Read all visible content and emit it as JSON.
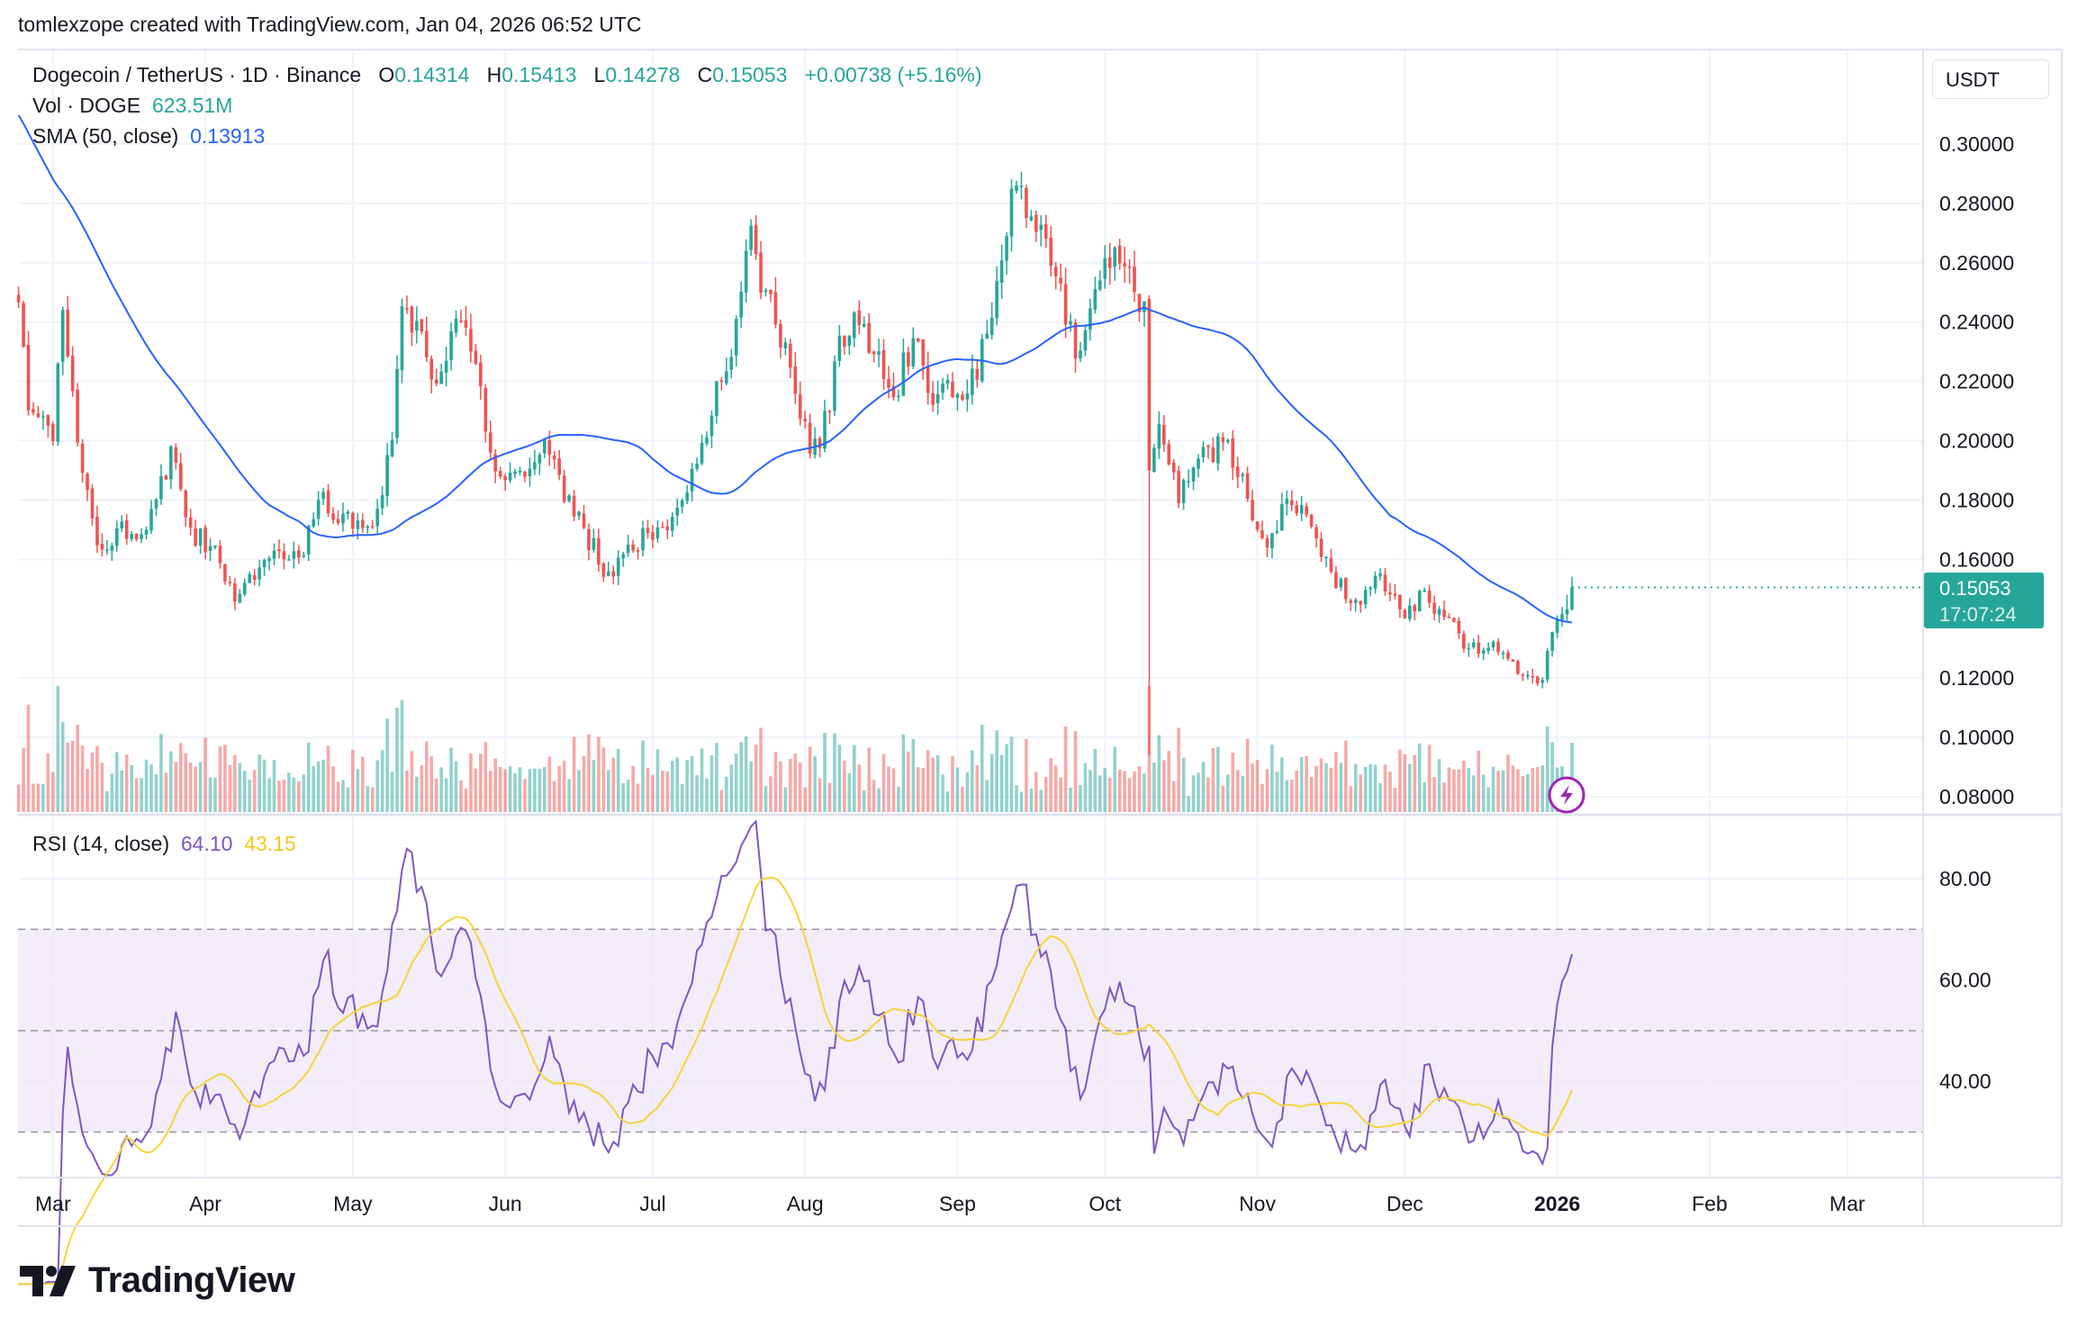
{
  "header": {
    "attribution": "tomlexzope created with TradingView.com, Jan 04, 2026 06:52 UTC"
  },
  "legend": {
    "symbol": "Dogecoin / TetherUS · 1D · Binance",
    "o_label": "O",
    "o": "0.14314",
    "h_label": "H",
    "h": "0.15413",
    "l_label": "L",
    "l": "0.14278",
    "c_label": "C",
    "c": "0.15053",
    "change": "+0.00738 (+5.16%)",
    "vol_label": "Vol · DOGE",
    "vol": "623.51M",
    "sma_label": "SMA (50, close)",
    "sma": "0.13913"
  },
  "price_axis": {
    "currency": "USDT",
    "labels": [
      "0.30000",
      "0.28000",
      "0.26000",
      "0.24000",
      "0.22000",
      "0.20000",
      "0.18000",
      "0.16000",
      "0.12000",
      "0.10000",
      "0.08000"
    ],
    "last_price": "0.15053",
    "countdown": "17:07:24"
  },
  "rsi": {
    "label": "RSI (14, close)",
    "value": "64.10",
    "ma": "43.15",
    "labels": [
      "80.00",
      "60.00",
      "40.00"
    ],
    "upper": 70,
    "middle": 50,
    "lower": 30
  },
  "time_axis": [
    {
      "label": "Mar",
      "date": "2025-03-01"
    },
    {
      "label": "Apr",
      "date": "2025-04-01"
    },
    {
      "label": "May",
      "date": "2025-05-01"
    },
    {
      "label": "Jun",
      "date": "2025-06-01"
    },
    {
      "label": "Jul",
      "date": "2025-07-01"
    },
    {
      "label": "Aug",
      "date": "2025-08-01"
    },
    {
      "label": "Sep",
      "date": "2025-09-01"
    },
    {
      "label": "Oct",
      "date": "2025-10-01"
    },
    {
      "label": "Nov",
      "date": "2025-11-01"
    },
    {
      "label": "Dec",
      "date": "2025-12-01"
    },
    {
      "label": "2026",
      "date": "2026-01-01"
    },
    {
      "label": "Feb",
      "date": "2026-02-01"
    },
    {
      "label": "Mar",
      "date": "2026-03-01"
    }
  ],
  "colors": {
    "up": "#26a69a",
    "down": "#ef5350",
    "sma": "#2962ff",
    "rsi": "#7e57c2",
    "rsi_ma": "#f7d33a",
    "rsi_band": "#ede7f6",
    "alert": "#9c27b0"
  },
  "icons": {
    "alert": "lightning-icon",
    "logo": "tradingview-logo"
  },
  "logo": "TradingView",
  "chart_data": {
    "type": "candlestick",
    "symbol": "DOGEUSDT",
    "interval": "1D",
    "ylim": [
      0.07,
      0.31
    ],
    "closes": [
      [
        "2025-02-22",
        0.246
      ],
      [
        "2025-02-24",
        0.21
      ],
      [
        "2025-03-01",
        0.2
      ],
      [
        "2025-03-03",
        0.245
      ],
      [
        "2025-03-06",
        0.2
      ],
      [
        "2025-03-10",
        0.165
      ],
      [
        "2025-03-14",
        0.17
      ],
      [
        "2025-03-20",
        0.17
      ],
      [
        "2025-03-25",
        0.197
      ],
      [
        "2025-03-29",
        0.17
      ],
      [
        "2025-04-02",
        0.165
      ],
      [
        "2025-04-07",
        0.145
      ],
      [
        "2025-04-10",
        0.155
      ],
      [
        "2025-04-14",
        0.16
      ],
      [
        "2025-04-20",
        0.16
      ],
      [
        "2025-04-24",
        0.181
      ],
      [
        "2025-04-29",
        0.175
      ],
      [
        "2025-05-05",
        0.17
      ],
      [
        "2025-05-09",
        0.2
      ],
      [
        "2025-05-11",
        0.245
      ],
      [
        "2025-05-14",
        0.24
      ],
      [
        "2025-05-17",
        0.22
      ],
      [
        "2025-05-22",
        0.24
      ],
      [
        "2025-05-26",
        0.225
      ],
      [
        "2025-05-30",
        0.19
      ],
      [
        "2025-06-04",
        0.19
      ],
      [
        "2025-06-09",
        0.2
      ],
      [
        "2025-06-13",
        0.18
      ],
      [
        "2025-06-17",
        0.17
      ],
      [
        "2025-06-22",
        0.155
      ],
      [
        "2025-06-26",
        0.165
      ],
      [
        "2025-07-02",
        0.17
      ],
      [
        "2025-07-07",
        0.18
      ],
      [
        "2025-07-11",
        0.2
      ],
      [
        "2025-07-15",
        0.22
      ],
      [
        "2025-07-18",
        0.24
      ],
      [
        "2025-07-21",
        0.273
      ],
      [
        "2025-07-23",
        0.25
      ],
      [
        "2025-07-26",
        0.24
      ],
      [
        "2025-07-29",
        0.225
      ],
      [
        "2025-08-02",
        0.195
      ],
      [
        "2025-08-06",
        0.21
      ],
      [
        "2025-08-08",
        0.235
      ],
      [
        "2025-08-12",
        0.24
      ],
      [
        "2025-08-16",
        0.23
      ],
      [
        "2025-08-19",
        0.215
      ],
      [
        "2025-08-23",
        0.235
      ],
      [
        "2025-08-26",
        0.215
      ],
      [
        "2025-08-30",
        0.22
      ],
      [
        "2025-09-03",
        0.215
      ],
      [
        "2025-09-07",
        0.235
      ],
      [
        "2025-09-10",
        0.26
      ],
      [
        "2025-09-12",
        0.286
      ],
      [
        "2025-09-16",
        0.275
      ],
      [
        "2025-09-21",
        0.255
      ],
      [
        "2025-09-23",
        0.24
      ],
      [
        "2025-09-26",
        0.23
      ],
      [
        "2025-09-30",
        0.255
      ],
      [
        "2025-10-04",
        0.26
      ],
      [
        "2025-10-07",
        0.25
      ],
      [
        "2025-10-09",
        0.248
      ],
      [
        "2025-10-10",
        0.19
      ],
      [
        "2025-10-12",
        0.205
      ],
      [
        "2025-10-16",
        0.18
      ],
      [
        "2025-10-20",
        0.195
      ],
      [
        "2025-10-26",
        0.2
      ],
      [
        "2025-10-30",
        0.18
      ],
      [
        "2025-11-03",
        0.165
      ],
      [
        "2025-11-07",
        0.18
      ],
      [
        "2025-11-11",
        0.175
      ],
      [
        "2025-11-15",
        0.16
      ],
      [
        "2025-11-20",
        0.145
      ],
      [
        "2025-11-26",
        0.155
      ],
      [
        "2025-12-01",
        0.14
      ],
      [
        "2025-12-05",
        0.15
      ],
      [
        "2025-12-09",
        0.14
      ],
      [
        "2025-12-14",
        0.13
      ],
      [
        "2025-12-18",
        0.13
      ],
      [
        "2025-12-23",
        0.125
      ],
      [
        "2025-12-29",
        0.12
      ],
      [
        "2025-12-31",
        0.135
      ],
      [
        "2026-01-04",
        0.15053
      ]
    ],
    "wicks": [
      {
        "date": "2025-10-10",
        "low": 0.094,
        "high": 0.249
      }
    ],
    "last_candle": {
      "date": "2026-01-04",
      "open": 0.14314,
      "high": 0.15413,
      "low": 0.14278,
      "close": 0.15053,
      "volume": "623.51M"
    },
    "indicators": [
      {
        "name": "SMA (50, close)",
        "last": 0.13913
      },
      {
        "name": "RSI (14, close)",
        "last": 64.1,
        "ma_last": 43.15
      }
    ]
  }
}
